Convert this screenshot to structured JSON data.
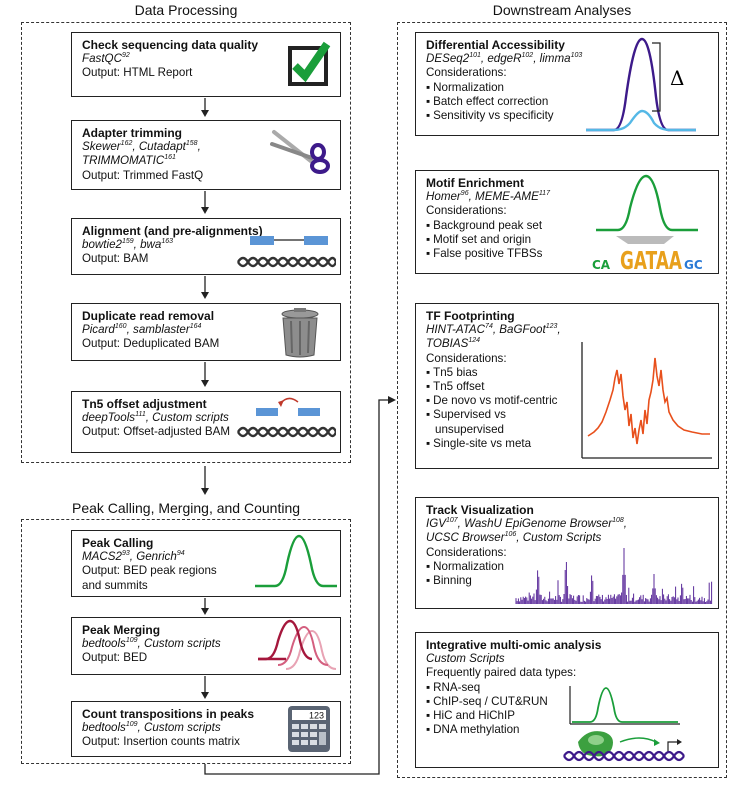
{
  "sections": {
    "data_processing": "Data Processing",
    "peak_calling": "Peak Calling, Merging, and Counting",
    "downstream": "Downstream Analyses"
  },
  "left_boxes": [
    {
      "title": "Check sequencing data quality",
      "tools": [
        {
          "name": "FastQC",
          "ref": "92"
        }
      ],
      "output": "Output: HTML Report",
      "icon": "checkmark-icon"
    },
    {
      "title": "Adapter trimming",
      "tools": [
        {
          "name": "Skewer",
          "ref": "162"
        },
        {
          "name": "Cutadapt",
          "ref": "158"
        },
        {
          "name": "TRIMMOMATIC",
          "ref": "161"
        }
      ],
      "output": "Output: Trimmed FastQ",
      "icon": "scissors-icon"
    },
    {
      "title": "Alignment (and pre-alignments)",
      "tools": [
        {
          "name": "bowtie2",
          "ref": "159"
        },
        {
          "name": "bwa",
          "ref": "163"
        }
      ],
      "output": "Output: BAM",
      "icon": "dna-alignment-icon"
    },
    {
      "title": "Duplicate read removal",
      "tools": [
        {
          "name": "Picard",
          "ref": "160"
        },
        {
          "name": "samblaster",
          "ref": "164"
        }
      ],
      "output": "Output: Deduplicated BAM",
      "icon": "trash-can-icon"
    },
    {
      "title": "Tn5 offset adjustment",
      "tools": [
        {
          "name": "deepTools",
          "ref": "111"
        },
        {
          "name": "Custom scripts",
          "ref": ""
        }
      ],
      "output": "Output: Offset-adjusted BAM",
      "icon": "dna-offset-icon"
    }
  ],
  "peak_boxes": [
    {
      "title": "Peak Calling",
      "tools": [
        {
          "name": "MACS2",
          "ref": "93"
        },
        {
          "name": "Genrich",
          "ref": "94"
        }
      ],
      "output": "Output: BED peak regions",
      "output2": "and summits",
      "icon": "peak-icon"
    },
    {
      "title": "Peak Merging",
      "tools": [
        {
          "name": "bedtools",
          "ref": "109"
        },
        {
          "name": "Custom scripts",
          "ref": ""
        }
      ],
      "output": "Output: BED",
      "icon": "merged-peaks-icon"
    },
    {
      "title": "Count transpositions in peaks",
      "tools": [
        {
          "name": "bedtools",
          "ref": "109"
        },
        {
          "name": "Custom scripts",
          "ref": ""
        }
      ],
      "output": "Output: Insertion counts matrix",
      "icon": "calculator-icon",
      "calc_display": "123"
    }
  ],
  "right_boxes": {
    "diff": {
      "title": "Differential Accessibility",
      "tools": [
        {
          "name": "DESeq2",
          "ref": "101"
        },
        {
          "name": "edgeR",
          "ref": "102"
        },
        {
          "name": "limma",
          "ref": "103"
        }
      ],
      "considerations": "Considerations:",
      "items": [
        "Normalization",
        "Batch effect correction",
        "Sensitivity vs specificity"
      ],
      "delta": "Δ"
    },
    "motif": {
      "title": "Motif Enrichment",
      "tools": [
        {
          "name": "Homer",
          "ref": "96"
        },
        {
          "name": "MEME-AME",
          "ref": "117"
        }
      ],
      "considerations": "Considerations:",
      "items": [
        "Background peak set",
        "Motif set and origin",
        "False positive TFBSs"
      ],
      "logo": "GATAA"
    },
    "tf": {
      "title": "TF Footprinting",
      "tools": [
        {
          "name": "HINT-ATAC",
          "ref": "74"
        },
        {
          "name": "BaGFoot",
          "ref": "123"
        },
        {
          "name": "TOBIAS",
          "ref": "124"
        }
      ],
      "considerations": "Considerations:",
      "items": [
        "Tn5 bias",
        "Tn5 offset",
        "De novo vs motif-centric",
        "Supervised vs",
        "unsupervised",
        "Single-site vs meta"
      ]
    },
    "track": {
      "title": "Track Visualization",
      "tools": [
        {
          "name": "IGV",
          "ref": "107"
        },
        {
          "name": "WashU EpiGenome Browser",
          "ref": "108"
        },
        {
          "name": "UCSC Browser",
          "ref": "106"
        },
        {
          "name": "Custom Scripts",
          "ref": ""
        }
      ],
      "considerations": "Considerations:",
      "items": [
        "Normalization",
        "Binning"
      ]
    },
    "multi": {
      "title": "Integrative multi-omic analysis",
      "tools": [
        {
          "name": "Custom Scripts",
          "ref": ""
        }
      ],
      "considerations": "Frequently paired data types:",
      "items": [
        "RNA-seq",
        "ChIP-seq / CUT&RUN",
        "HiC and HiChIP",
        "DNA methylation"
      ]
    }
  },
  "colors": {
    "green": "#1a9e3a",
    "purple": "#3d1a8a",
    "blue": "#55b8e6",
    "orange": "#e8501c",
    "red": "#a5173c",
    "pink": "#e8a3b4",
    "track": "#5a2a9a"
  }
}
